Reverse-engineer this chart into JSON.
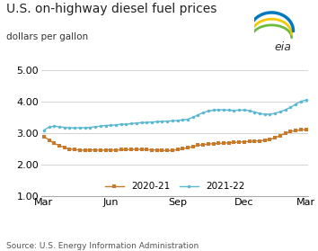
{
  "title": "U.S. on-highway diesel fuel prices",
  "subtitle": "dollars per gallon",
  "source": "Source: U.S. Energy Information Administration",
  "ylim": [
    1.0,
    5.0
  ],
  "yticks": [
    1.0,
    2.0,
    3.0,
    4.0,
    5.0
  ],
  "xtick_positions": [
    0,
    13,
    26,
    39,
    51
  ],
  "xtick_labels": [
    "Mar",
    "Jun",
    "Sep",
    "Dec",
    "Mar"
  ],
  "series_2020_21": {
    "label": "2020-21",
    "color": "#C8792A",
    "marker": "s",
    "values": [
      2.89,
      2.78,
      2.67,
      2.6,
      2.54,
      2.49,
      2.47,
      2.46,
      2.45,
      2.46,
      2.46,
      2.45,
      2.46,
      2.46,
      2.45,
      2.47,
      2.47,
      2.48,
      2.48,
      2.48,
      2.47,
      2.46,
      2.46,
      2.45,
      2.44,
      2.45,
      2.47,
      2.5,
      2.53,
      2.57,
      2.61,
      2.63,
      2.65,
      2.66,
      2.67,
      2.68,
      2.69,
      2.7,
      2.71,
      2.72,
      2.73,
      2.74,
      2.75,
      2.77,
      2.8,
      2.85,
      2.92,
      2.99,
      3.05,
      3.08,
      3.1,
      3.11
    ]
  },
  "series_2021_22": {
    "label": "2021-22",
    "color": "#5BB8D4",
    "marker": "o",
    "values": [
      3.09,
      3.19,
      3.22,
      3.2,
      3.18,
      3.17,
      3.16,
      3.17,
      3.17,
      3.18,
      3.2,
      3.22,
      3.24,
      3.25,
      3.26,
      3.28,
      3.28,
      3.3,
      3.32,
      3.33,
      3.34,
      3.35,
      3.36,
      3.37,
      3.38,
      3.39,
      3.4,
      3.42,
      3.44,
      3.5,
      3.58,
      3.65,
      3.7,
      3.73,
      3.74,
      3.74,
      3.73,
      3.72,
      3.73,
      3.73,
      3.72,
      3.67,
      3.62,
      3.6,
      3.6,
      3.63,
      3.68,
      3.74,
      3.82,
      3.92,
      4.01,
      4.05
    ]
  },
  "background_color": "#ffffff",
  "grid_color": "#cccccc",
  "title_fontsize": 10,
  "subtitle_fontsize": 7.5,
  "source_fontsize": 6.5,
  "axis_fontsize": 8,
  "legend_fontsize": 7.5
}
